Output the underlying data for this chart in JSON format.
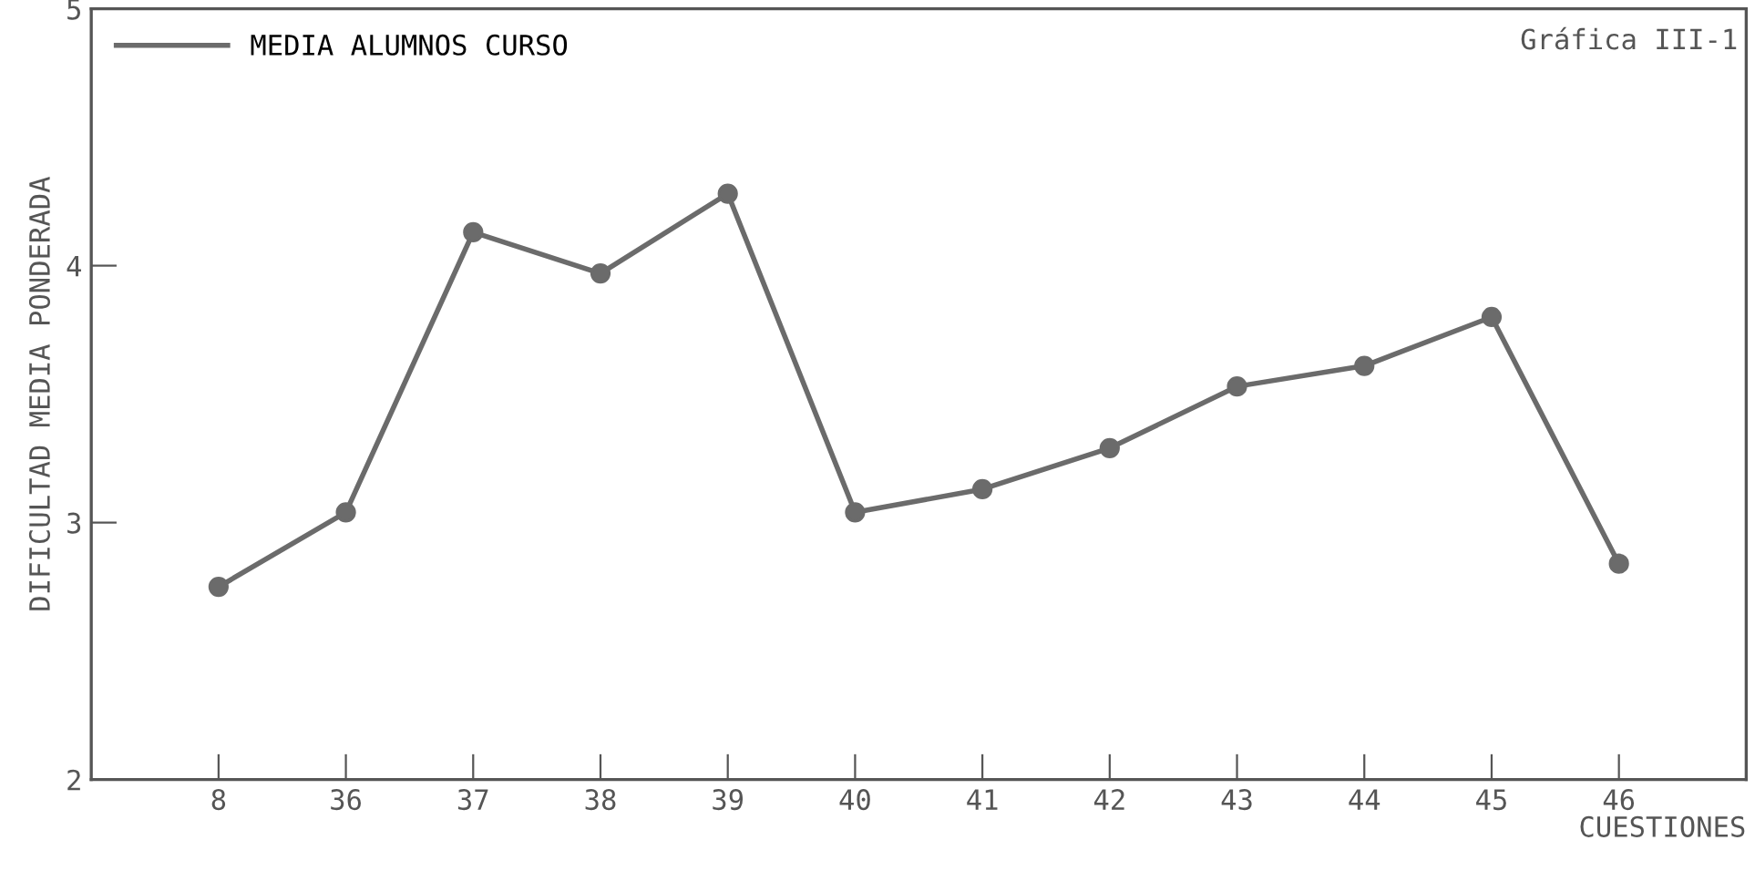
{
  "chart_data": {
    "type": "line",
    "xlabel": "CUESTIONES",
    "ylabel": "DIFICULTAD MEDIA PONDERADA",
    "annotations": [
      "Gráfica III-1"
    ],
    "categories": [
      "8",
      "36",
      "37",
      "38",
      "39",
      "40",
      "41",
      "42",
      "43",
      "44",
      "45",
      "46"
    ],
    "series": [
      {
        "name": "MEDIA ALUMNOS CURSO",
        "color": "#6b6b6b",
        "values": [
          2.75,
          3.04,
          4.13,
          3.97,
          4.28,
          3.04,
          3.13,
          3.29,
          3.53,
          3.61,
          3.8,
          2.84
        ]
      }
    ],
    "ylim": [
      2,
      5
    ],
    "yticks": [
      2,
      3,
      4,
      5
    ],
    "marker": "circle",
    "line_style": "solid",
    "legend": "top left",
    "grid": false
  }
}
